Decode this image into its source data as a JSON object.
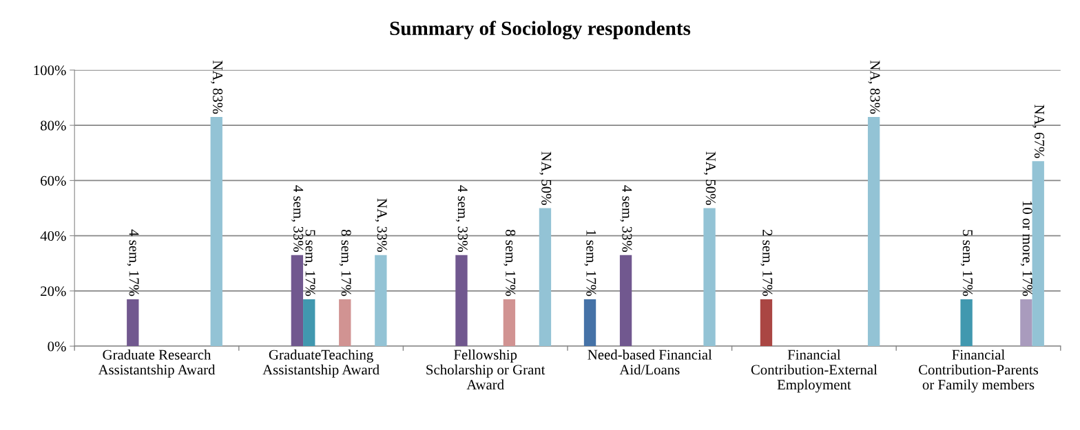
{
  "chart_data": {
    "type": "bar",
    "title": "Summary of Sociology respondents",
    "categories": [
      "Graduate Research\nAssistantship Award",
      "GraduateTeaching\nAssistantship Award",
      "Fellowship\nScholarship or Grant\nAward",
      "Need-based Financial\nAid/Loans",
      "Financial\nContribution-External\nEmployment",
      "Financial\nContribution-Parents\nor Family members"
    ],
    "series": [
      {
        "color": "#4572a7",
        "values": [
          null,
          null,
          null,
          17,
          null,
          null
        ],
        "value_labels": [
          null,
          null,
          null,
          "1 sem, 17%",
          null,
          null
        ]
      },
      {
        "color": "#aa4643",
        "values": [
          null,
          null,
          null,
          null,
          17,
          null
        ],
        "value_labels": [
          null,
          null,
          null,
          null,
          "2 sem, 17%",
          null
        ]
      },
      {
        "values": [
          null,
          null,
          null,
          null,
          null,
          null
        ]
      },
      {
        "color": "#71588f",
        "values": [
          17,
          33,
          33,
          33,
          null,
          null
        ],
        "value_labels": [
          "4 sem, 17%",
          "4 sem, 33%",
          "4 sem, 33%",
          "4 sem, 33%",
          null,
          null
        ]
      },
      {
        "color": "#4198af",
        "values": [
          null,
          17,
          null,
          null,
          null,
          17
        ],
        "value_labels": [
          null,
          "5 sem, 17%",
          null,
          null,
          null,
          "5 sem, 17%"
        ]
      },
      {
        "values": [
          null,
          null,
          null,
          null,
          null,
          null
        ]
      },
      {
        "values": [
          null,
          null,
          null,
          null,
          null,
          null
        ]
      },
      {
        "color": "#d19392",
        "values": [
          null,
          17,
          17,
          null,
          null,
          null
        ],
        "value_labels": [
          null,
          "8 sem, 17%",
          "8 sem, 17%",
          null,
          null,
          null
        ]
      },
      {
        "values": [
          null,
          null,
          null,
          null,
          null,
          null
        ]
      },
      {
        "color": "#a99bbd",
        "values": [
          null,
          null,
          null,
          null,
          null,
          17
        ],
        "value_labels": [
          null,
          null,
          null,
          null,
          null,
          "10 or more, 17%"
        ]
      },
      {
        "color": "#93c3d5",
        "values": [
          83,
          33,
          50,
          50,
          83,
          67
        ],
        "value_labels": [
          "NA, 83%",
          "NA, 33%",
          "NA, 50%",
          "NA, 50%",
          "NA, 83%",
          "NA, 67%"
        ]
      }
    ],
    "ylim": [
      0,
      100
    ],
    "yticks": [
      {
        "value": 0,
        "label": "0%"
      },
      {
        "value": 20,
        "label": "20%"
      },
      {
        "value": 40,
        "label": "40%"
      },
      {
        "value": 60,
        "label": "60%"
      },
      {
        "value": 80,
        "label": "80%"
      },
      {
        "value": 100,
        "label": "100%"
      }
    ],
    "grid": "y",
    "legend": false
  }
}
